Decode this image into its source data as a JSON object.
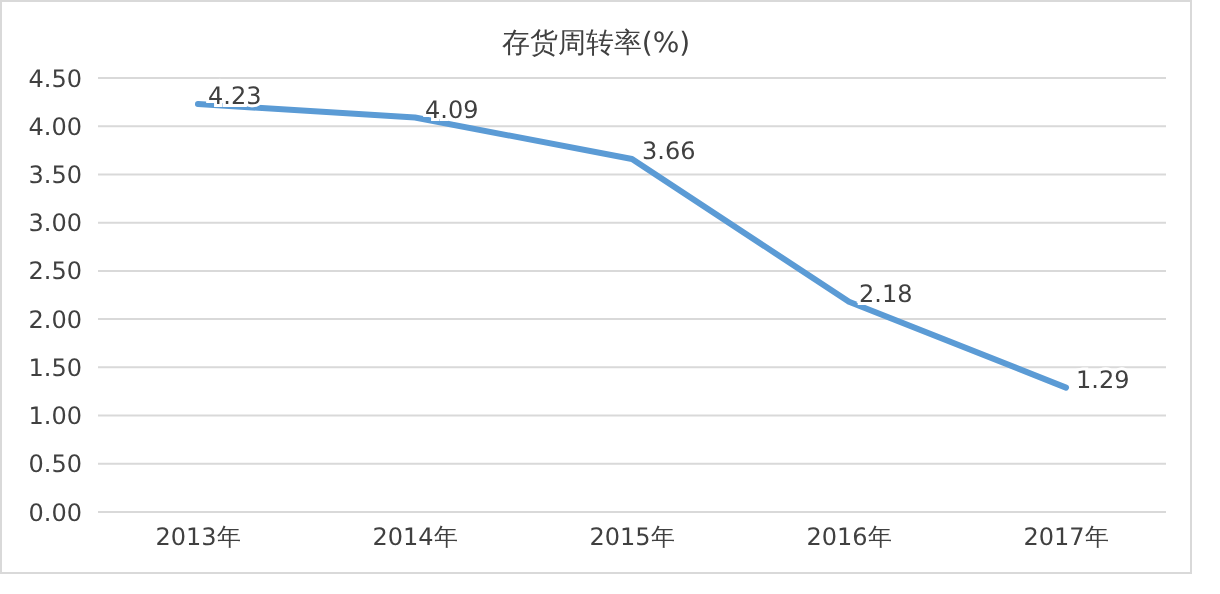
{
  "chart_data": {
    "type": "line",
    "title": "存货周转率(%)",
    "categories": [
      "2013年",
      "2014年",
      "2015年",
      "2016年",
      "2017年"
    ],
    "series": [
      {
        "color": "#5b9bd5",
        "values": [
          4.23,
          4.09,
          3.66,
          2.18,
          1.29
        ]
      }
    ],
    "ylim": [
      0,
      4.5
    ],
    "yticks": [
      {
        "value": 0,
        "label": "0.00"
      },
      {
        "value": 0.5,
        "label": "0.50"
      },
      {
        "value": 1,
        "label": "1.00"
      },
      {
        "value": 1.5,
        "label": "1.50"
      },
      {
        "value": 2,
        "label": "2.00"
      },
      {
        "value": 2.5,
        "label": "2.50"
      },
      {
        "value": 3,
        "label": "3.00"
      },
      {
        "value": 3.5,
        "label": "3.50"
      },
      {
        "value": 4,
        "label": "4.00"
      },
      {
        "value": 4.5,
        "label": "4.50"
      }
    ],
    "grid": "y",
    "data_labels": true,
    "marker": "none",
    "line_style": "solid",
    "legend": false
  }
}
